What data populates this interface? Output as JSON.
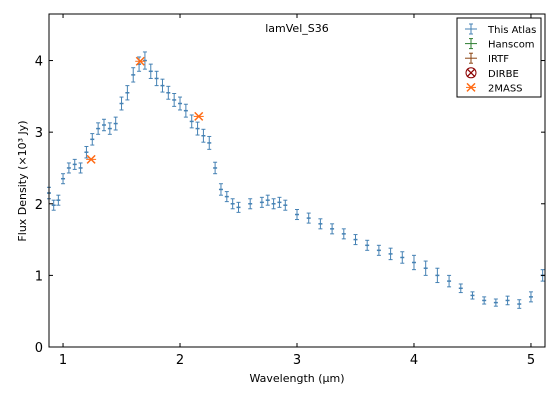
{
  "chart_data": {
    "type": "scatter",
    "title": "lamVel_S36",
    "xlabel": "Wavelength (μm)",
    "ylabel": "Flux Density (×10³ Jy)",
    "xlim": [
      0.88,
      5.12
    ],
    "ylim": [
      0,
      4.65
    ],
    "xticks": [
      1,
      2,
      3,
      4,
      5
    ],
    "yticks": [
      0,
      1,
      2,
      3,
      4
    ],
    "grid": false,
    "legend_position": "top-right",
    "legend": [
      {
        "label": "This Atlas",
        "color": "#4682b4",
        "marker": "errorbar"
      },
      {
        "label": "Hanscom",
        "color": "#2e7d32",
        "marker": "errorbar"
      },
      {
        "label": "IRTF",
        "color": "#8b4513",
        "marker": "errorbar"
      },
      {
        "label": "DIRBE",
        "color": "#8b0000",
        "marker": "x-circle"
      },
      {
        "label": "2MASS",
        "color": "#ff6a13",
        "marker": "x"
      }
    ],
    "series": [
      {
        "name": "This Atlas",
        "color": "#4682b4",
        "x": [
          0.88,
          0.92,
          0.96,
          1.0,
          1.05,
          1.1,
          1.15,
          1.2,
          1.25,
          1.3,
          1.35,
          1.4,
          1.45,
          1.5,
          1.55,
          1.6,
          1.65,
          1.7,
          1.75,
          1.8,
          1.85,
          1.9,
          1.95,
          2.0,
          2.05,
          2.1,
          2.15,
          2.2,
          2.25,
          2.3,
          2.35,
          2.4,
          2.45,
          2.5,
          2.6,
          2.7,
          2.75,
          2.8,
          2.85,
          2.9,
          3.0,
          3.1,
          3.2,
          3.3,
          3.4,
          3.5,
          3.6,
          3.7,
          3.8,
          3.9,
          4.0,
          4.1,
          4.2,
          4.3,
          4.4,
          4.5,
          4.6,
          4.7,
          4.8,
          4.9,
          5.0,
          5.1
        ],
        "y": [
          2.15,
          1.98,
          2.05,
          2.35,
          2.5,
          2.55,
          2.5,
          2.72,
          2.9,
          3.05,
          3.1,
          3.05,
          3.12,
          3.4,
          3.55,
          3.8,
          3.95,
          4.0,
          3.85,
          3.75,
          3.65,
          3.55,
          3.45,
          3.4,
          3.3,
          3.15,
          3.05,
          2.95,
          2.85,
          2.5,
          2.2,
          2.1,
          2.0,
          1.95,
          2.0,
          2.02,
          2.05,
          2.0,
          2.02,
          1.98,
          1.85,
          1.8,
          1.72,
          1.65,
          1.58,
          1.5,
          1.42,
          1.35,
          1.3,
          1.25,
          1.18,
          1.1,
          1.0,
          0.92,
          0.82,
          0.72,
          0.65,
          0.62,
          0.65,
          0.6,
          0.7,
          1.0
        ],
        "err": [
          0.08,
          0.07,
          0.07,
          0.07,
          0.07,
          0.07,
          0.07,
          0.08,
          0.08,
          0.08,
          0.08,
          0.08,
          0.09,
          0.09,
          0.1,
          0.1,
          0.1,
          0.12,
          0.1,
          0.1,
          0.09,
          0.09,
          0.09,
          0.09,
          0.09,
          0.09,
          0.09,
          0.09,
          0.09,
          0.08,
          0.08,
          0.07,
          0.07,
          0.07,
          0.07,
          0.07,
          0.07,
          0.07,
          0.07,
          0.07,
          0.07,
          0.07,
          0.07,
          0.07,
          0.07,
          0.07,
          0.07,
          0.07,
          0.08,
          0.08,
          0.1,
          0.1,
          0.1,
          0.08,
          0.06,
          0.05,
          0.05,
          0.05,
          0.06,
          0.06,
          0.07,
          0.08
        ]
      },
      {
        "name": "2MASS",
        "color": "#ff6a13",
        "x": [
          1.24,
          1.66,
          2.16
        ],
        "y": [
          2.62,
          3.99,
          3.22
        ]
      }
    ]
  }
}
